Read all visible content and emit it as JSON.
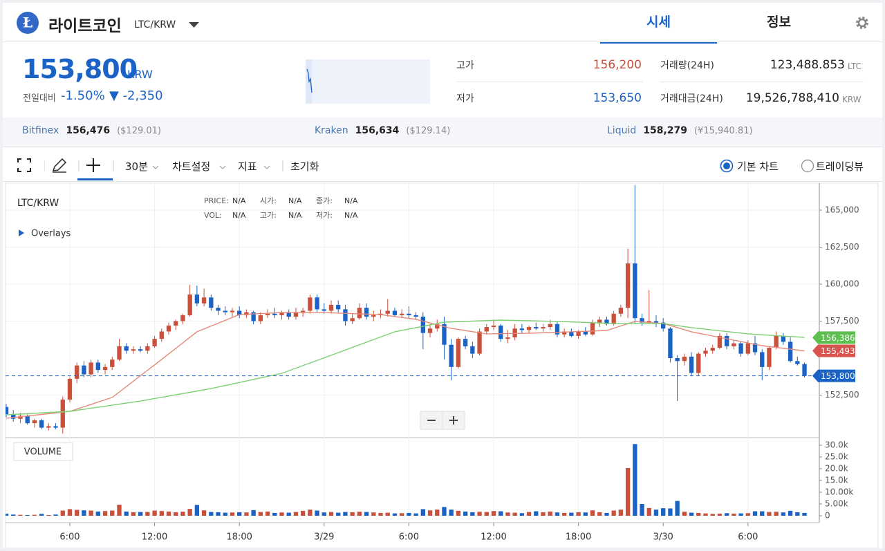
{
  "header": {
    "title": "라이트코인",
    "pair": "LTC/KRW",
    "tabs": [
      "시세",
      "정보"
    ]
  },
  "summary": {
    "price": "153,800",
    "currency": "KRW",
    "change_label": "전일대비",
    "change_pct": "-1.50%",
    "change_abs": "▼ -2,350",
    "stats": [
      {
        "label": "고가",
        "value": "156,200"
      },
      {
        "label": "저가",
        "value": "153,650"
      },
      {
        "label": "거래량(24H)",
        "value": "123,488.853",
        "unit": "LTC"
      },
      {
        "label": "거래대금(24H)",
        "value": "19,526,788,410",
        "unit": "KRW"
      }
    ]
  },
  "exchanges": [
    {
      "name": "Bitfinex",
      "price": "156,476",
      "usd": "($129.01)"
    },
    {
      "name": "Kraken",
      "price": "156,634",
      "usd": "($129.14)"
    },
    {
      "name": "Liquid",
      "price": "158,279",
      "usd": "(¥15,940.81)"
    }
  ],
  "toolbar": {
    "interval": "30분",
    "items": [
      "차트설정",
      "지표",
      "초기화"
    ],
    "views": [
      "기본 차트",
      "트레이딩뷰"
    ]
  },
  "chart_data": {
    "type": "candlestick",
    "symbol": "LTC/KRW",
    "overlays": "Overlays",
    "volume_label": "VOLUME",
    "legend": [
      [
        "PRICE:",
        "N/A"
      ],
      [
        "시가:",
        "N/A"
      ],
      [
        "종가:",
        "N/A"
      ],
      [
        "VOL:",
        "N/A"
      ],
      [
        "고가:",
        "N/A"
      ],
      [
        "저가:",
        "N/A"
      ]
    ],
    "up_color": "#c9503a",
    "down_color": "#1a62c6",
    "grid": true,
    "candles": [
      [
        151700,
        151900,
        151000,
        151200,
        900
      ],
      [
        151200,
        151500,
        150700,
        150900,
        500
      ],
      [
        150900,
        151300,
        150600,
        151100,
        400
      ],
      [
        151100,
        151200,
        150500,
        150600,
        300
      ],
      [
        150600,
        150900,
        150300,
        150800,
        400
      ],
      [
        150800,
        150900,
        150200,
        150300,
        800
      ],
      [
        150300,
        150600,
        150100,
        150400,
        300
      ],
      [
        150400,
        150600,
        150200,
        150300,
        500
      ],
      [
        150300,
        152400,
        149900,
        152200,
        2200
      ],
      [
        152200,
        153700,
        152000,
        153600,
        2800
      ],
      [
        153600,
        154700,
        153300,
        154500,
        2500
      ],
      [
        154500,
        154800,
        153700,
        153900,
        2300
      ],
      [
        153900,
        154900,
        153700,
        154700,
        2200
      ],
      [
        154700,
        154900,
        154000,
        154200,
        1800
      ],
      [
        154200,
        154600,
        153900,
        154400,
        2000
      ],
      [
        154400,
        155100,
        154200,
        154900,
        2200
      ],
      [
        154900,
        156300,
        154800,
        155800,
        4700
      ],
      [
        155800,
        156000,
        155300,
        155500,
        1800
      ],
      [
        155500,
        155800,
        155300,
        155600,
        1500
      ],
      [
        155600,
        155800,
        155400,
        155500,
        1600
      ],
      [
        155500,
        156000,
        155300,
        155800,
        1600
      ],
      [
        155800,
        156500,
        155700,
        156300,
        2200
      ],
      [
        156300,
        157000,
        156100,
        156800,
        2000
      ],
      [
        156800,
        157400,
        156600,
        157200,
        1800
      ],
      [
        157200,
        157600,
        156900,
        157500,
        1500
      ],
      [
        157500,
        158000,
        157300,
        157900,
        1700
      ],
      [
        157900,
        159950,
        157800,
        159300,
        2900
      ],
      [
        159300,
        159900,
        158500,
        158700,
        4600
      ],
      [
        158700,
        159700,
        158500,
        159100,
        2300
      ],
      [
        159100,
        159300,
        158200,
        158400,
        1600
      ],
      [
        158400,
        158600,
        157900,
        158200,
        1500
      ],
      [
        158200,
        158500,
        157900,
        158100,
        1300
      ],
      [
        158100,
        158400,
        157800,
        158200,
        1400
      ],
      [
        158200,
        158500,
        157700,
        157900,
        1500
      ],
      [
        157900,
        158300,
        157700,
        158100,
        1400
      ],
      [
        158100,
        158200,
        157300,
        157500,
        2400
      ],
      [
        157500,
        158100,
        157300,
        157900,
        1600
      ],
      [
        157900,
        158300,
        157700,
        158000,
        1800
      ],
      [
        158000,
        158400,
        157700,
        157900,
        1200
      ],
      [
        157900,
        158200,
        157600,
        158100,
        1400
      ],
      [
        158100,
        158300,
        157600,
        157800,
        1300
      ],
      [
        157800,
        158400,
        157600,
        158100,
        1600
      ],
      [
        158100,
        158400,
        157800,
        158200,
        2100
      ],
      [
        158200,
        159300,
        158000,
        159100,
        2600
      ],
      [
        159100,
        159300,
        158100,
        158300,
        2200
      ],
      [
        158300,
        158700,
        158000,
        158200,
        1400
      ],
      [
        158200,
        158900,
        158000,
        158600,
        1600
      ],
      [
        158600,
        158900,
        158100,
        158300,
        1300
      ],
      [
        158300,
        158600,
        157200,
        157500,
        1600
      ],
      [
        157500,
        158000,
        157300,
        157700,
        1500
      ],
      [
        157700,
        158700,
        157600,
        158400,
        1700
      ],
      [
        158400,
        158700,
        157600,
        157800,
        1600
      ],
      [
        157800,
        158200,
        157500,
        157900,
        1400
      ],
      [
        157900,
        158300,
        157700,
        158000,
        1200
      ],
      [
        158000,
        159000,
        157800,
        158200,
        1300
      ],
      [
        158200,
        158400,
        157800,
        157900,
        1000
      ],
      [
        157900,
        158300,
        157700,
        158000,
        1100
      ],
      [
        158000,
        158500,
        157700,
        157900,
        1200
      ],
      [
        157900,
        158100,
        157600,
        157800,
        1000
      ],
      [
        157800,
        158100,
        155600,
        156700,
        2800
      ],
      [
        156700,
        157300,
        156400,
        157000,
        2300
      ],
      [
        157000,
        157600,
        156800,
        157300,
        2600
      ],
      [
        157300,
        157800,
        154900,
        155900,
        3700
      ],
      [
        155900,
        156300,
        153500,
        154400,
        2600
      ],
      [
        154400,
        156400,
        154300,
        156300,
        2100
      ],
      [
        156300,
        156500,
        155600,
        155800,
        1800
      ],
      [
        155800,
        156100,
        155000,
        155300,
        1500
      ],
      [
        155300,
        157000,
        155200,
        156800,
        1700
      ],
      [
        156800,
        157300,
        156600,
        157100,
        1600
      ],
      [
        157100,
        157600,
        156900,
        157200,
        2000
      ],
      [
        157200,
        157300,
        156100,
        156300,
        1900
      ],
      [
        156300,
        156900,
        156000,
        156400,
        1400
      ],
      [
        156400,
        157300,
        156200,
        157000,
        1300
      ],
      [
        157000,
        157300,
        156700,
        156900,
        1100
      ],
      [
        156900,
        157200,
        156700,
        157100,
        1600
      ],
      [
        157100,
        157400,
        156900,
        157000,
        1900
      ],
      [
        157000,
        157300,
        156800,
        157100,
        1500
      ],
      [
        157100,
        157600,
        156900,
        157300,
        1800
      ],
      [
        157300,
        157500,
        156400,
        156600,
        1400
      ],
      [
        156600,
        157000,
        156400,
        156800,
        1200
      ],
      [
        156800,
        157000,
        156400,
        156500,
        1300
      ],
      [
        156500,
        156900,
        156300,
        156800,
        1500
      ],
      [
        156800,
        157100,
        156500,
        156600,
        1400
      ],
      [
        156600,
        157600,
        156500,
        157400,
        2300
      ],
      [
        157400,
        157800,
        157100,
        157600,
        1500
      ],
      [
        157600,
        157800,
        157200,
        157300,
        1200
      ],
      [
        157300,
        158200,
        157200,
        158000,
        2200
      ],
      [
        158000,
        158600,
        157800,
        158400,
        2600
      ],
      [
        158400,
        162400,
        157700,
        161400,
        20300
      ],
      [
        161400,
        166700,
        157300,
        157700,
        30500
      ],
      [
        157700,
        158000,
        157200,
        157400,
        5000
      ],
      [
        157400,
        159600,
        157300,
        157500,
        3300
      ],
      [
        157500,
        157900,
        157100,
        157400,
        2600
      ],
      [
        157400,
        157700,
        156800,
        157000,
        3200
      ],
      [
        157000,
        157100,
        154700,
        155000,
        3100
      ],
      [
        155000,
        155200,
        152100,
        154800,
        6300
      ],
      [
        154800,
        155300,
        154500,
        155100,
        1700
      ],
      [
        155100,
        155400,
        153800,
        154000,
        1300
      ],
      [
        154000,
        155400,
        153800,
        155300,
        1200
      ],
      [
        155300,
        155700,
        155100,
        155500,
        1000
      ],
      [
        155500,
        155900,
        155300,
        155700,
        800
      ],
      [
        155700,
        156700,
        155600,
        156500,
        900
      ],
      [
        156500,
        156700,
        155600,
        155800,
        1100
      ],
      [
        155800,
        156200,
        155600,
        156000,
        900
      ],
      [
        156000,
        156100,
        155100,
        155300,
        1000
      ],
      [
        155300,
        156200,
        155200,
        156000,
        1100
      ],
      [
        156000,
        156500,
        155200,
        155400,
        1900
      ],
      [
        155400,
        155600,
        153500,
        154400,
        1900
      ],
      [
        154400,
        155800,
        154200,
        155700,
        1600
      ],
      [
        155700,
        156800,
        155600,
        156500,
        1700
      ],
      [
        156500,
        156700,
        155900,
        156100,
        1400
      ],
      [
        156100,
        156400,
        154700,
        154800,
        2100
      ],
      [
        154800,
        155100,
        154500,
        154600,
        1500
      ],
      [
        154600,
        154700,
        153700,
        153800,
        1200
      ]
    ],
    "series": [
      {
        "color": "#e58a7a",
        "x": [
          0,
          9,
          15,
          22,
          27,
          33,
          39,
          45,
          53,
          58,
          63,
          68,
          74,
          80,
          85,
          89,
          93,
          97,
          102,
          107,
          113
        ],
        "values": [
          150930,
          151400,
          152340,
          154910,
          156780,
          157940,
          158080,
          158080,
          157940,
          157620,
          157010,
          156640,
          156680,
          156780,
          156870,
          157480,
          157340,
          156780,
          156310,
          155840,
          155490
        ]
      },
      {
        "color": "#7ccf72",
        "x": [
          0,
          9,
          19,
          29,
          39,
          47,
          55,
          62,
          70,
          78,
          86,
          93,
          97,
          105,
          113
        ],
        "values": [
          151170,
          151400,
          152100,
          152940,
          153970,
          155370,
          156780,
          157430,
          157570,
          157480,
          157340,
          157340,
          157060,
          156640,
          156400
        ]
      }
    ],
    "markers": [
      {
        "value": 156386,
        "label": "156,386",
        "color": "#5cbf4e"
      },
      {
        "value": 155493,
        "label": "155,493",
        "color": "#d9534f"
      },
      {
        "value": 153800,
        "label": "153,800",
        "color": "#1a62c6",
        "dashed": true
      }
    ],
    "xlim": [
      -0.1,
      115.1
    ],
    "xticks": [
      {
        "value": 9,
        "label": "6:00"
      },
      {
        "value": 21,
        "label": "12:00"
      },
      {
        "value": 33,
        "label": "18:00"
      },
      {
        "value": 45,
        "label": "3/29"
      },
      {
        "value": 57,
        "label": "6:00"
      },
      {
        "value": 69,
        "label": "12:00"
      },
      {
        "value": 81,
        "label": "18:00"
      },
      {
        "value": 93,
        "label": "3/30"
      },
      {
        "value": 105,
        "label": "6:00"
      }
    ],
    "ylim": [
      149673,
      166822
    ],
    "yticks": [
      {
        "value": 152500,
        "label": "152,500"
      },
      {
        "value": 157500,
        "label": "157,500"
      },
      {
        "value": 160000,
        "label": "160,000"
      },
      {
        "value": 162500,
        "label": "162,500"
      },
      {
        "value": 165000,
        "label": "165,000"
      }
    ],
    "vlim": [
      -1765,
      32940
    ],
    "vticks": [
      0,
      {
        "value": 5000,
        "label": "5.00k"
      },
      {
        "value": 10000,
        "label": "10.00k"
      },
      {
        "value": 15000,
        "label": "15.0k"
      },
      {
        "value": 20000,
        "label": "20.0k"
      },
      {
        "value": 25000,
        "label": "25.0k"
      },
      {
        "value": 30000,
        "label": "30.0k"
      }
    ]
  }
}
